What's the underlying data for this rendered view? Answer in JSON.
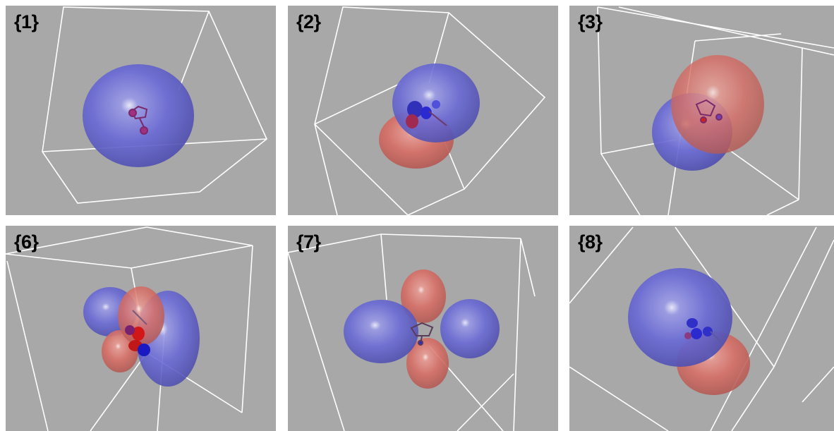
{
  "panels": [
    {
      "label": "{1}"
    },
    {
      "label": "{2}"
    },
    {
      "label": "{3}"
    },
    {
      "label": "{6}"
    },
    {
      "label": "{7}"
    },
    {
      "label": "{8}"
    }
  ],
  "colors": {
    "background": "#a8a8a8",
    "box_edges": "#ffffff",
    "lobe_positive": "#6a6ad8",
    "lobe_negative": "#d8706a",
    "label": "#000000"
  }
}
